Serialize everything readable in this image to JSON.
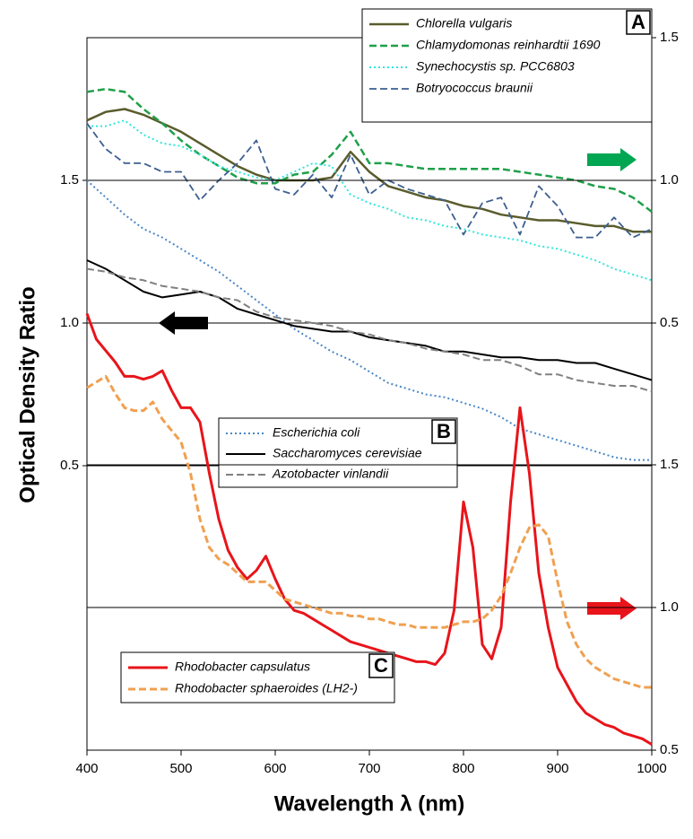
{
  "chart_data": [
    {
      "type": "line",
      "label": "A",
      "y_axis": "right",
      "x": [
        400,
        420,
        440,
        460,
        480,
        500,
        520,
        540,
        560,
        580,
        600,
        620,
        640,
        660,
        680,
        700,
        720,
        740,
        760,
        780,
        800,
        820,
        840,
        860,
        880,
        900,
        920,
        940,
        960,
        980,
        1000
      ],
      "ylim": [
        0.5,
        1.5
      ],
      "yticks": [
        0.5,
        {
          "value": 1,
          "label": "1.0"
        },
        1.5
      ],
      "grid": true,
      "series": [
        {
          "name": "Chlorella vulgaris",
          "color": "#5a5c2c",
          "style": "solid",
          "values": [
            1.21,
            1.24,
            1.25,
            1.23,
            1.2,
            1.17,
            1.13,
            1.09,
            1.05,
            1.02,
            1.0,
            1.0,
            1.0,
            1.01,
            1.1,
            1.03,
            0.98,
            0.96,
            0.94,
            0.93,
            0.91,
            0.9,
            0.88,
            0.87,
            0.86,
            0.86,
            0.85,
            0.84,
            0.84,
            0.82,
            0.82
          ]
        },
        {
          "name": "Chlamydomonas reinhardtii 1690",
          "color": "#1fa04a",
          "style": "dashed",
          "values": [
            1.31,
            1.32,
            1.31,
            1.25,
            1.2,
            1.14,
            1.09,
            1.05,
            1.01,
            0.99,
            0.99,
            1.02,
            1.03,
            1.09,
            1.17,
            1.06,
            1.06,
            1.05,
            1.04,
            1.04,
            1.04,
            1.04,
            1.04,
            1.03,
            1.02,
            1.01,
            1.0,
            0.98,
            0.97,
            0.94,
            0.89
          ]
        },
        {
          "name": "Synechocystis sp. PCC6803",
          "color": "#30e6dc",
          "style": "dotted",
          "values": [
            1.19,
            1.19,
            1.21,
            1.16,
            1.13,
            1.12,
            1.09,
            1.05,
            1.03,
            1.01,
            1.0,
            1.03,
            1.06,
            1.05,
            0.95,
            0.92,
            0.9,
            0.87,
            0.86,
            0.84,
            0.83,
            0.81,
            0.8,
            0.79,
            0.77,
            0.76,
            0.74,
            0.72,
            0.69,
            0.67,
            0.65
          ]
        },
        {
          "name": "Botryococcus braunii",
          "color": "#3d5f8f",
          "style": "dashed",
          "values": [
            1.2,
            1.11,
            1.06,
            1.06,
            1.03,
            1.03,
            0.93,
            1.0,
            1.06,
            1.14,
            0.97,
            0.95,
            1.02,
            0.94,
            1.09,
            0.95,
            1.0,
            0.97,
            0.95,
            0.93,
            0.81,
            0.92,
            0.94,
            0.81,
            0.98,
            0.91,
            0.8,
            0.8,
            0.87,
            0.8,
            0.83
          ]
        }
      ]
    },
    {
      "type": "line",
      "label": "B",
      "y_axis": "left",
      "ylabel": "Optical Density Ratio",
      "x": [
        400,
        420,
        440,
        460,
        480,
        500,
        520,
        540,
        560,
        580,
        600,
        620,
        640,
        660,
        680,
        700,
        720,
        740,
        760,
        780,
        800,
        820,
        840,
        860,
        880,
        900,
        920,
        940,
        960,
        980,
        1000
      ],
      "ylim": [
        0.5,
        2.0
      ],
      "yticks": [
        0.5,
        {
          "value": 1,
          "label": "1.0"
        },
        1.5
      ],
      "grid": true,
      "series": [
        {
          "name": "Escherichia coli",
          "color": "#4a86c8",
          "style": "dotted",
          "values": [
            1.5,
            1.44,
            1.38,
            1.33,
            1.3,
            1.26,
            1.22,
            1.18,
            1.13,
            1.08,
            1.03,
            0.98,
            0.94,
            0.9,
            0.87,
            0.83,
            0.79,
            0.77,
            0.75,
            0.74,
            0.72,
            0.7,
            0.67,
            0.63,
            0.61,
            0.59,
            0.57,
            0.55,
            0.53,
            0.52,
            0.52
          ]
        },
        {
          "name": "Saccharomyces cerevisiae",
          "color": "#000000",
          "style": "solid",
          "values": [
            1.22,
            1.19,
            1.15,
            1.11,
            1.09,
            1.1,
            1.11,
            1.09,
            1.05,
            1.03,
            1.01,
            0.99,
            0.98,
            0.97,
            0.97,
            0.95,
            0.94,
            0.93,
            0.92,
            0.9,
            0.9,
            0.89,
            0.88,
            0.88,
            0.87,
            0.87,
            0.86,
            0.86,
            0.84,
            0.82,
            0.8
          ]
        },
        {
          "name": "Azotobacter vinlandii",
          "color": "#808080",
          "style": "dashed",
          "values": [
            1.19,
            1.18,
            1.16,
            1.15,
            1.13,
            1.12,
            1.11,
            1.09,
            1.08,
            1.04,
            1.02,
            1.01,
            1.0,
            0.99,
            0.97,
            0.96,
            0.94,
            0.93,
            0.91,
            0.9,
            0.89,
            0.87,
            0.87,
            0.85,
            0.82,
            0.82,
            0.8,
            0.79,
            0.78,
            0.78,
            0.76
          ]
        }
      ]
    },
    {
      "type": "line",
      "label": "C",
      "y_axis": "right",
      "xlabel": "Wavelength λ (nm)",
      "xlim": [
        400,
        1000
      ],
      "xticks": [
        400,
        500,
        600,
        700,
        800,
        900,
        1000
      ],
      "x": [
        400,
        410,
        420,
        430,
        440,
        450,
        460,
        470,
        480,
        490,
        500,
        510,
        520,
        530,
        540,
        550,
        560,
        570,
        580,
        590,
        600,
        610,
        620,
        630,
        640,
        650,
        660,
        670,
        680,
        690,
        700,
        710,
        720,
        730,
        740,
        750,
        760,
        770,
        780,
        790,
        800,
        810,
        820,
        830,
        840,
        850,
        860,
        870,
        880,
        890,
        900,
        910,
        920,
        930,
        940,
        950,
        960,
        970,
        980,
        990,
        1000
      ],
      "ylim": [
        0.5,
        2.0
      ],
      "yticks": [
        0.5,
        {
          "value": 1,
          "label": "1.0"
        },
        1.5
      ],
      "grid": true,
      "series": [
        {
          "name": "Rhodobacter capsulatus",
          "color": "#e8141a",
          "style": "solid",
          "values": [
            2.03,
            1.94,
            1.9,
            1.86,
            1.81,
            1.81,
            1.8,
            1.81,
            1.83,
            1.76,
            1.7,
            1.7,
            1.65,
            1.47,
            1.31,
            1.2,
            1.14,
            1.1,
            1.13,
            1.18,
            1.1,
            1.03,
            0.99,
            0.98,
            0.96,
            0.94,
            0.92,
            0.9,
            0.88,
            0.87,
            0.86,
            0.85,
            0.84,
            0.83,
            0.82,
            0.81,
            0.81,
            0.8,
            0.84,
            0.99,
            1.37,
            1.21,
            0.87,
            0.82,
            0.93,
            1.37,
            1.7,
            1.47,
            1.12,
            0.93,
            0.79,
            0.73,
            0.67,
            0.63,
            0.61,
            0.59,
            0.58,
            0.56,
            0.55,
            0.54,
            0.52
          ]
        },
        {
          "name": "Rhodobacter sphaeroides (LH2-)",
          "color": "#f0a050",
          "style": "dashed",
          "values": [
            1.77,
            1.79,
            1.81,
            1.75,
            1.7,
            1.69,
            1.69,
            1.72,
            1.66,
            1.62,
            1.58,
            1.47,
            1.31,
            1.21,
            1.17,
            1.15,
            1.12,
            1.09,
            1.09,
            1.09,
            1.06,
            1.03,
            1.02,
            1.01,
            1.0,
            0.99,
            0.98,
            0.98,
            0.97,
            0.97,
            0.96,
            0.96,
            0.95,
            0.94,
            0.94,
            0.93,
            0.93,
            0.93,
            0.93,
            0.94,
            0.95,
            0.95,
            0.96,
            0.99,
            1.04,
            1.12,
            1.21,
            1.28,
            1.29,
            1.25,
            1.09,
            0.95,
            0.87,
            0.82,
            0.79,
            0.77,
            0.75,
            0.74,
            0.73,
            0.72,
            0.72
          ]
        }
      ]
    }
  ]
}
